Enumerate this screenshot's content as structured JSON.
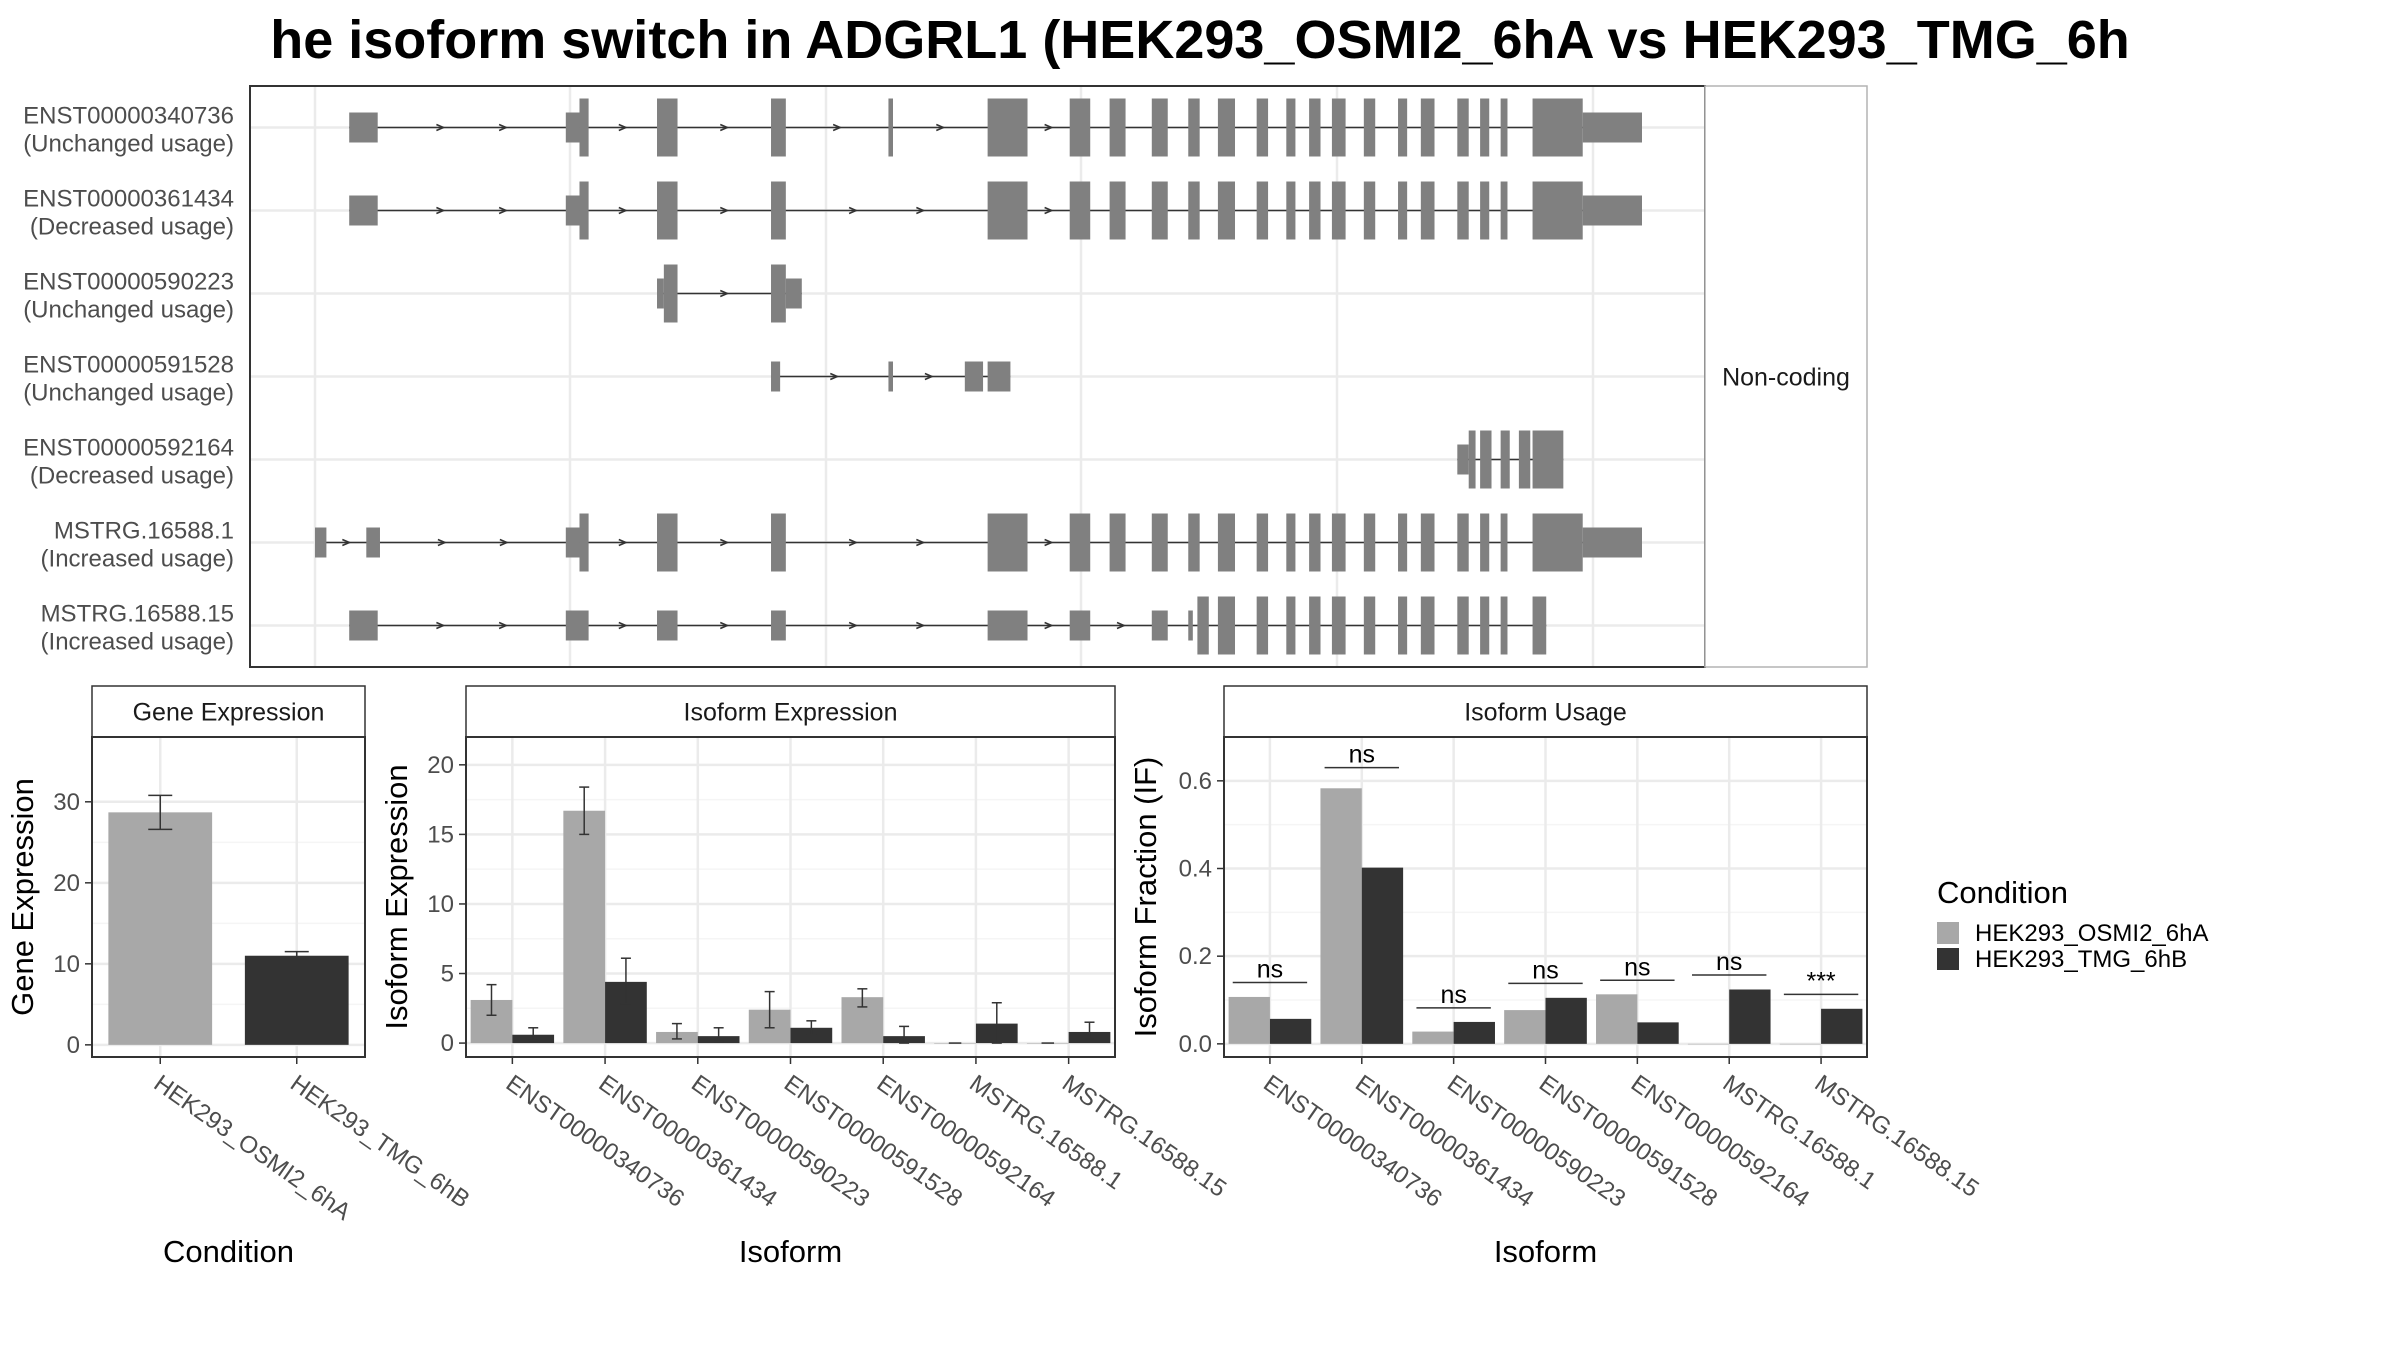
{
  "chart_data": [
    {
      "type": "gene-structure",
      "title": "he isoform switch in ADGRL1 (HEK293_OSMI2_6hA vs HEK293_TMG_6h",
      "facet_label": "Non-coding",
      "color": "#808080",
      "isoforms": [
        {
          "id": "ENST00000340736",
          "usage": "(Unchanged usage)",
          "exons": [
            [
              30,
              55,
              "u"
            ],
            [
              220,
              232,
              "u"
            ],
            [
              232,
              240,
              "c"
            ],
            [
              300,
              318,
              "c"
            ],
            [
              400,
              413,
              "c"
            ],
            [
              503,
              507,
              "c"
            ],
            [
              590,
              625,
              "c"
            ],
            [
              662,
              680,
              "c"
            ],
            [
              697,
              711,
              "c"
            ],
            [
              734,
              748,
              "c"
            ],
            [
              766,
              776,
              "c"
            ],
            [
              792,
              807,
              "c"
            ],
            [
              826,
              836,
              "c"
            ],
            [
              852,
              860,
              "c"
            ],
            [
              872,
              882,
              "c"
            ],
            [
              892,
              904,
              "c"
            ],
            [
              920,
              930,
              "c"
            ],
            [
              950,
              958,
              "c"
            ],
            [
              970,
              982,
              "c"
            ],
            [
              1002,
              1012,
              "c"
            ],
            [
              1022,
              1030,
              "c"
            ],
            [
              1040,
              1046,
              "c"
            ],
            [
              1068,
              1112,
              "c"
            ],
            [
              1112,
              1164,
              "u"
            ]
          ]
        },
        {
          "id": "ENST00000361434",
          "usage": "(Decreased usage)",
          "exons": [
            [
              30,
              55,
              "u"
            ],
            [
              220,
              232,
              "u"
            ],
            [
              232,
              240,
              "c"
            ],
            [
              300,
              318,
              "c"
            ],
            [
              400,
              413,
              "c"
            ],
            [
              590,
              625,
              "c"
            ],
            [
              662,
              680,
              "c"
            ],
            [
              697,
              711,
              "c"
            ],
            [
              734,
              748,
              "c"
            ],
            [
              766,
              776,
              "c"
            ],
            [
              792,
              807,
              "c"
            ],
            [
              826,
              836,
              "c"
            ],
            [
              852,
              860,
              "c"
            ],
            [
              872,
              882,
              "c"
            ],
            [
              892,
              904,
              "c"
            ],
            [
              920,
              930,
              "c"
            ],
            [
              950,
              958,
              "c"
            ],
            [
              970,
              982,
              "c"
            ],
            [
              1002,
              1012,
              "c"
            ],
            [
              1022,
              1030,
              "c"
            ],
            [
              1040,
              1046,
              "c"
            ],
            [
              1068,
              1112,
              "c"
            ],
            [
              1112,
              1164,
              "u"
            ]
          ]
        },
        {
          "id": "ENST00000590223",
          "usage": "(Unchanged usage)",
          "exons": [
            [
              300,
              306,
              "u"
            ],
            [
              306,
              318,
              "c"
            ],
            [
              400,
              413,
              "c"
            ],
            [
              413,
              427,
              "u"
            ]
          ]
        },
        {
          "id": "ENST00000591528",
          "usage": "(Unchanged usage)",
          "exons": [
            [
              400,
              408,
              "u"
            ],
            [
              503,
              507,
              "u"
            ],
            [
              570,
              582,
              "u"
            ],
            [
              582,
              586,
              "u"
            ],
            [
              590,
              610,
              "u"
            ]
          ]
        },
        {
          "id": "ENST00000592164",
          "usage": "(Decreased usage)",
          "exons": [
            [
              1002,
              1012,
              "u"
            ],
            [
              1012,
              1018,
              "c"
            ],
            [
              1022,
              1032,
              "c"
            ],
            [
              1040,
              1048,
              "c"
            ],
            [
              1056,
              1066,
              "c"
            ],
            [
              1068,
              1095,
              "c"
            ]
          ]
        },
        {
          "id": "MSTRG.16588.1",
          "usage": "(Increased usage)",
          "exons": [
            [
              0,
              10,
              "u"
            ],
            [
              45,
              57,
              "u"
            ],
            [
              220,
              232,
              "u"
            ],
            [
              232,
              240,
              "c"
            ],
            [
              300,
              318,
              "c"
            ],
            [
              400,
              413,
              "c"
            ],
            [
              590,
              625,
              "c"
            ],
            [
              662,
              680,
              "c"
            ],
            [
              697,
              711,
              "c"
            ],
            [
              734,
              748,
              "c"
            ],
            [
              766,
              776,
              "c"
            ],
            [
              792,
              807,
              "c"
            ],
            [
              826,
              836,
              "c"
            ],
            [
              852,
              860,
              "c"
            ],
            [
              872,
              882,
              "c"
            ],
            [
              892,
              904,
              "c"
            ],
            [
              920,
              930,
              "c"
            ],
            [
              950,
              958,
              "c"
            ],
            [
              970,
              982,
              "c"
            ],
            [
              1002,
              1012,
              "c"
            ],
            [
              1022,
              1030,
              "c"
            ],
            [
              1040,
              1046,
              "c"
            ],
            [
              1068,
              1112,
              "c"
            ],
            [
              1112,
              1164,
              "u"
            ]
          ]
        },
        {
          "id": "MSTRG.16588.15",
          "usage": "(Increased usage)",
          "exons": [
            [
              30,
              55,
              "u"
            ],
            [
              220,
              240,
              "u"
            ],
            [
              300,
              318,
              "u"
            ],
            [
              400,
              413,
              "u"
            ],
            [
              590,
              625,
              "u"
            ],
            [
              662,
              680,
              "u"
            ],
            [
              734,
              748,
              "u"
            ],
            [
              766,
              770,
              "u"
            ],
            [
              774,
              784,
              "c"
            ],
            [
              792,
              807,
              "c"
            ],
            [
              826,
              836,
              "c"
            ],
            [
              852,
              860,
              "c"
            ],
            [
              872,
              882,
              "c"
            ],
            [
              892,
              904,
              "c"
            ],
            [
              920,
              930,
              "c"
            ],
            [
              950,
              958,
              "c"
            ],
            [
              970,
              982,
              "c"
            ],
            [
              1002,
              1012,
              "c"
            ],
            [
              1022,
              1030,
              "c"
            ],
            [
              1040,
              1046,
              "c"
            ],
            [
              1068,
              1080,
              "c"
            ]
          ]
        }
      ]
    },
    {
      "type": "bar",
      "facet": "Gene Expression",
      "xlabel": "Condition",
      "ylabel": "Gene Expression",
      "categories": [
        "HEK293_OSMI2_6hA",
        "HEK293_TMG_6hB"
      ],
      "values": [
        28.7,
        11.0
      ],
      "errors": [
        [
          26.6,
          30.8
        ],
        [
          10.6,
          11.5
        ]
      ],
      "colors": [
        "#a8a8a8",
        "#333333"
      ],
      "ylim": [
        -1.5,
        38
      ],
      "yticks": [
        0,
        10,
        20,
        30
      ]
    },
    {
      "type": "bar",
      "facet": "Isoform Expression",
      "xlabel": "Isoform",
      "ylabel": "Isoform Expression",
      "categories": [
        "ENST00000340736",
        "ENST00000361434",
        "ENST00000590223",
        "ENST00000591528",
        "ENST00000592164",
        "MSTRG.16588.1",
        "MSTRG.16588.15"
      ],
      "series": [
        {
          "name": "HEK293_OSMI2_6hA",
          "color": "#a8a8a8",
          "values": [
            3.1,
            16.7,
            0.8,
            2.4,
            3.3,
            0,
            0
          ],
          "errors": [
            [
              2.0,
              4.2
            ],
            [
              15.0,
              18.4
            ],
            [
              0.3,
              1.4
            ],
            [
              1.1,
              3.7
            ],
            [
              2.6,
              3.9
            ],
            null,
            null
          ]
        },
        {
          "name": "HEK293_TMG_6hB",
          "color": "#333333",
          "values": [
            0.6,
            4.4,
            0.5,
            1.1,
            0.5,
            1.4,
            0.8
          ],
          "errors": [
            [
              0.2,
              1.1
            ],
            [
              2.8,
              6.1
            ],
            [
              0.1,
              1.1
            ],
            [
              0.6,
              1.6
            ],
            [
              0.0,
              1.2
            ],
            [
              0.0,
              2.9
            ],
            [
              0.3,
              1.5
            ]
          ]
        }
      ],
      "ylim": [
        -1.0,
        22
      ],
      "yticks": [
        0,
        5,
        10,
        15,
        20
      ]
    },
    {
      "type": "bar",
      "facet": "Isoform Usage",
      "xlabel": "Isoform",
      "ylabel": "Isoform Fraction (IF)",
      "categories": [
        "ENST00000340736",
        "ENST00000361434",
        "ENST00000590223",
        "ENST00000591528",
        "ENST00000592164",
        "MSTRG.16588.1",
        "MSTRG.16588.15"
      ],
      "series": [
        {
          "name": "HEK293_OSMI2_6hA",
          "color": "#a8a8a8",
          "values": [
            0.107,
            0.583,
            0.028,
            0.077,
            0.113,
            0.0,
            0.0
          ]
        },
        {
          "name": "HEK293_TMG_6hB",
          "color": "#333333",
          "values": [
            0.057,
            0.402,
            0.05,
            0.105,
            0.049,
            0.124,
            0.08
          ]
        }
      ],
      "significance": [
        "ns",
        "ns",
        "ns",
        "ns",
        "ns",
        "ns",
        "***"
      ],
      "sig_level": [
        0.14,
        0.63,
        0.082,
        0.138,
        0.145,
        0.157,
        0.113
      ],
      "ylim": [
        -0.03,
        0.7
      ],
      "yticks": [
        "0.0",
        "0.2",
        "0.4",
        "0.6"
      ],
      "ytick_values": [
        0,
        0.2,
        0.4,
        0.6
      ]
    }
  ],
  "legend": {
    "title": "Condition",
    "items": [
      {
        "label": "HEK293_OSMI2_6hA",
        "color": "#a8a8a8"
      },
      {
        "label": "HEK293_TMG_6hB",
        "color": "#333333"
      }
    ]
  }
}
